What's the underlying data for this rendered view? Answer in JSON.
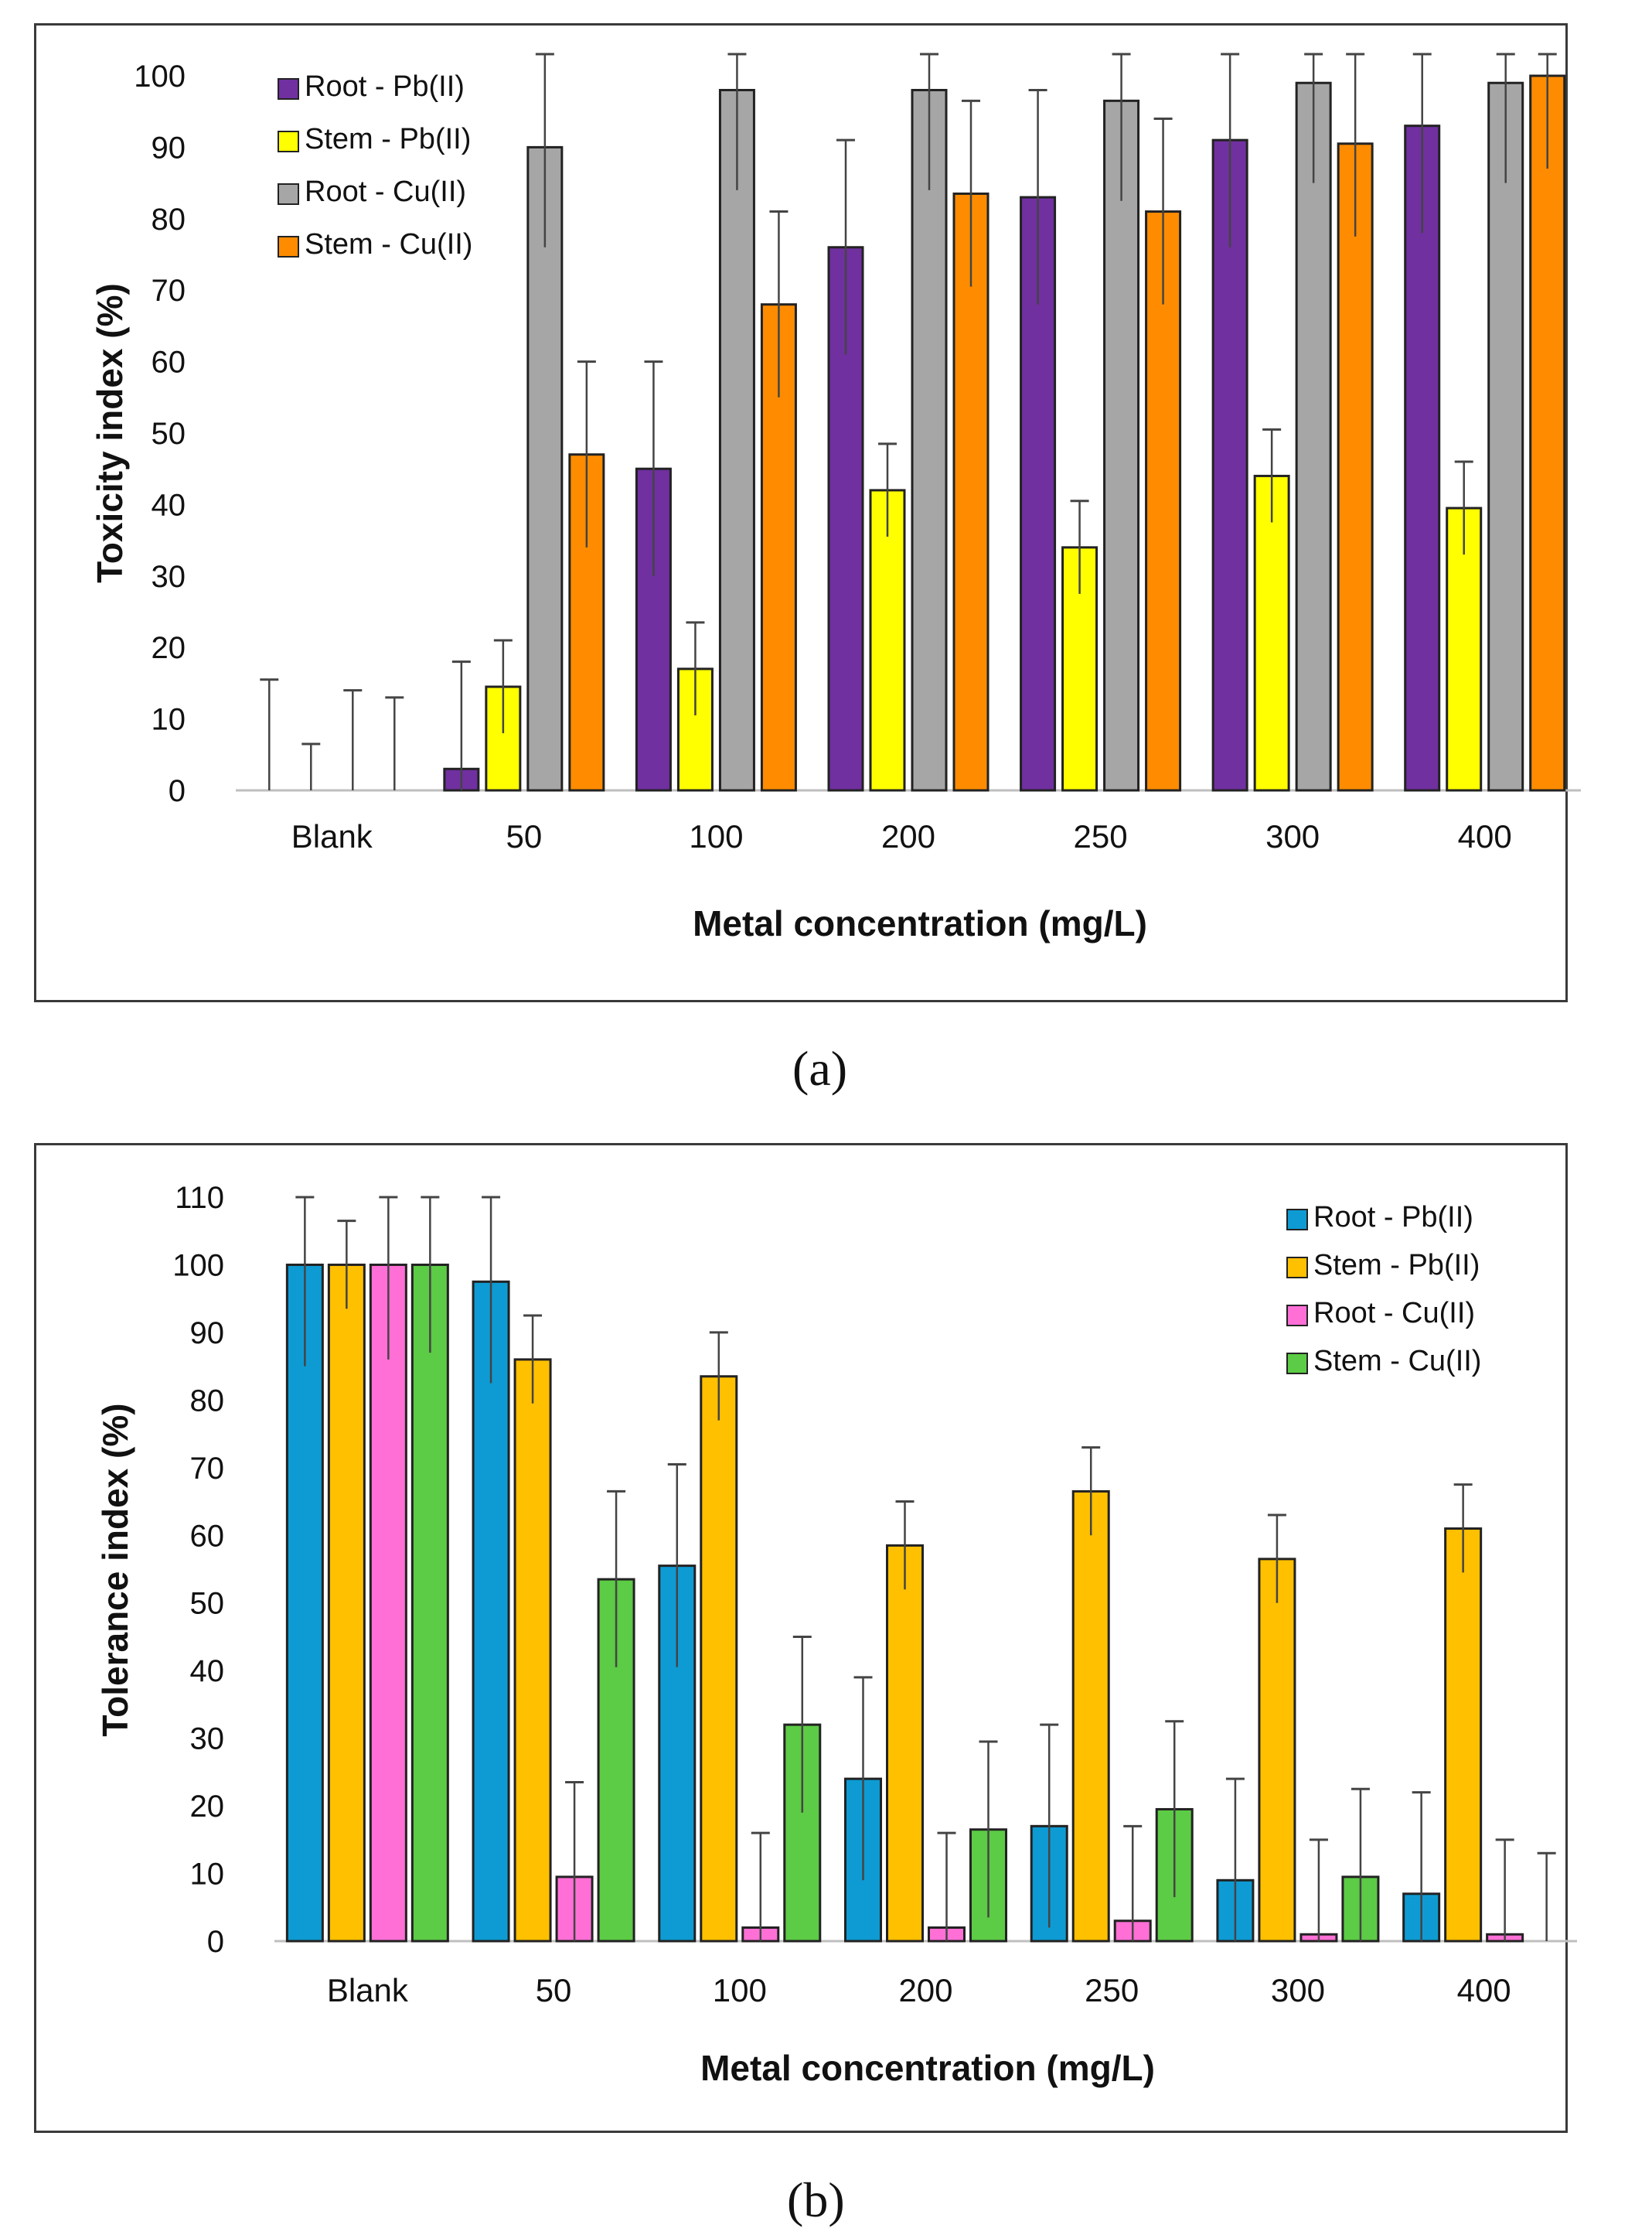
{
  "chart_data": [
    {
      "type": "bar",
      "panel": "(a)",
      "categories": [
        "Blank",
        "50",
        "100",
        "200",
        "250",
        "300",
        "400"
      ],
      "ylabel": "Toxicity index (%)",
      "xlabel": "Metal concentration (mg/L)",
      "ylim": [
        0,
        100
      ],
      "yticks": [
        0,
        10,
        20,
        30,
        40,
        50,
        60,
        70,
        80,
        90,
        100
      ],
      "legend_position": "top-left",
      "series": [
        {
          "name": "Root - Pb(II)",
          "color": "#7030A0",
          "values": [
            0,
            3,
            45,
            76,
            83,
            91,
            93
          ],
          "errors": [
            15.5,
            15,
            15,
            15,
            15,
            15,
            15
          ]
        },
        {
          "name": "Stem - Pb(II)",
          "color": "#FFFF00",
          "values": [
            0,
            14.5,
            17,
            42,
            34,
            44,
            39.5
          ],
          "errors": [
            6.5,
            6.5,
            6.5,
            6.5,
            6.5,
            6.5,
            6.5
          ]
        },
        {
          "name": "Root - Cu(II)",
          "color": "#A6A6A6",
          "values": [
            0,
            90,
            98,
            98,
            96.5,
            99,
            99
          ],
          "errors": [
            14,
            14,
            14,
            14,
            14,
            14,
            14
          ]
        },
        {
          "name": "Stem - Cu(II)",
          "color": "#FF8C00",
          "values": [
            0,
            47,
            68,
            83.5,
            81,
            90.5,
            100
          ],
          "errors": [
            13,
            13,
            13,
            13,
            13,
            13,
            13
          ]
        }
      ]
    },
    {
      "type": "bar",
      "panel": "(b)",
      "categories": [
        "Blank",
        "50",
        "100",
        "200",
        "250",
        "300",
        "400"
      ],
      "ylabel": "Tolerance index (%)",
      "xlabel": "Metal concentration (mg/L)",
      "ylim": [
        0,
        110
      ],
      "yticks": [
        0,
        10,
        20,
        30,
        40,
        50,
        60,
        70,
        80,
        90,
        100,
        110
      ],
      "legend_position": "top-right",
      "series": [
        {
          "name": "Root - Pb(II)",
          "color": "#0E9BD3",
          "values": [
            100,
            97.5,
            55.5,
            24,
            17,
            9,
            7
          ],
          "errors": [
            15,
            15,
            15,
            15,
            15,
            15,
            15
          ]
        },
        {
          "name": "Stem - Pb(II)",
          "color": "#FFC000",
          "values": [
            100,
            86,
            83.5,
            58.5,
            66.5,
            56.5,
            61
          ],
          "errors": [
            6.5,
            6.5,
            6.5,
            6.5,
            6.5,
            6.5,
            6.5
          ]
        },
        {
          "name": "Root - Cu(II)",
          "color": "#FF6FD6",
          "values": [
            100,
            9.5,
            2,
            2,
            3,
            1,
            1
          ],
          "errors": [
            14,
            14,
            14,
            14,
            14,
            14,
            14
          ]
        },
        {
          "name": "Stem - Cu(II)",
          "color": "#5CCB45",
          "values": [
            100,
            53.5,
            32,
            16.5,
            19.5,
            9.5,
            0
          ],
          "errors": [
            13,
            13,
            13,
            13,
            13,
            13,
            13
          ]
        }
      ]
    }
  ],
  "captions": {
    "a": "(a)",
    "b": "(b)"
  }
}
